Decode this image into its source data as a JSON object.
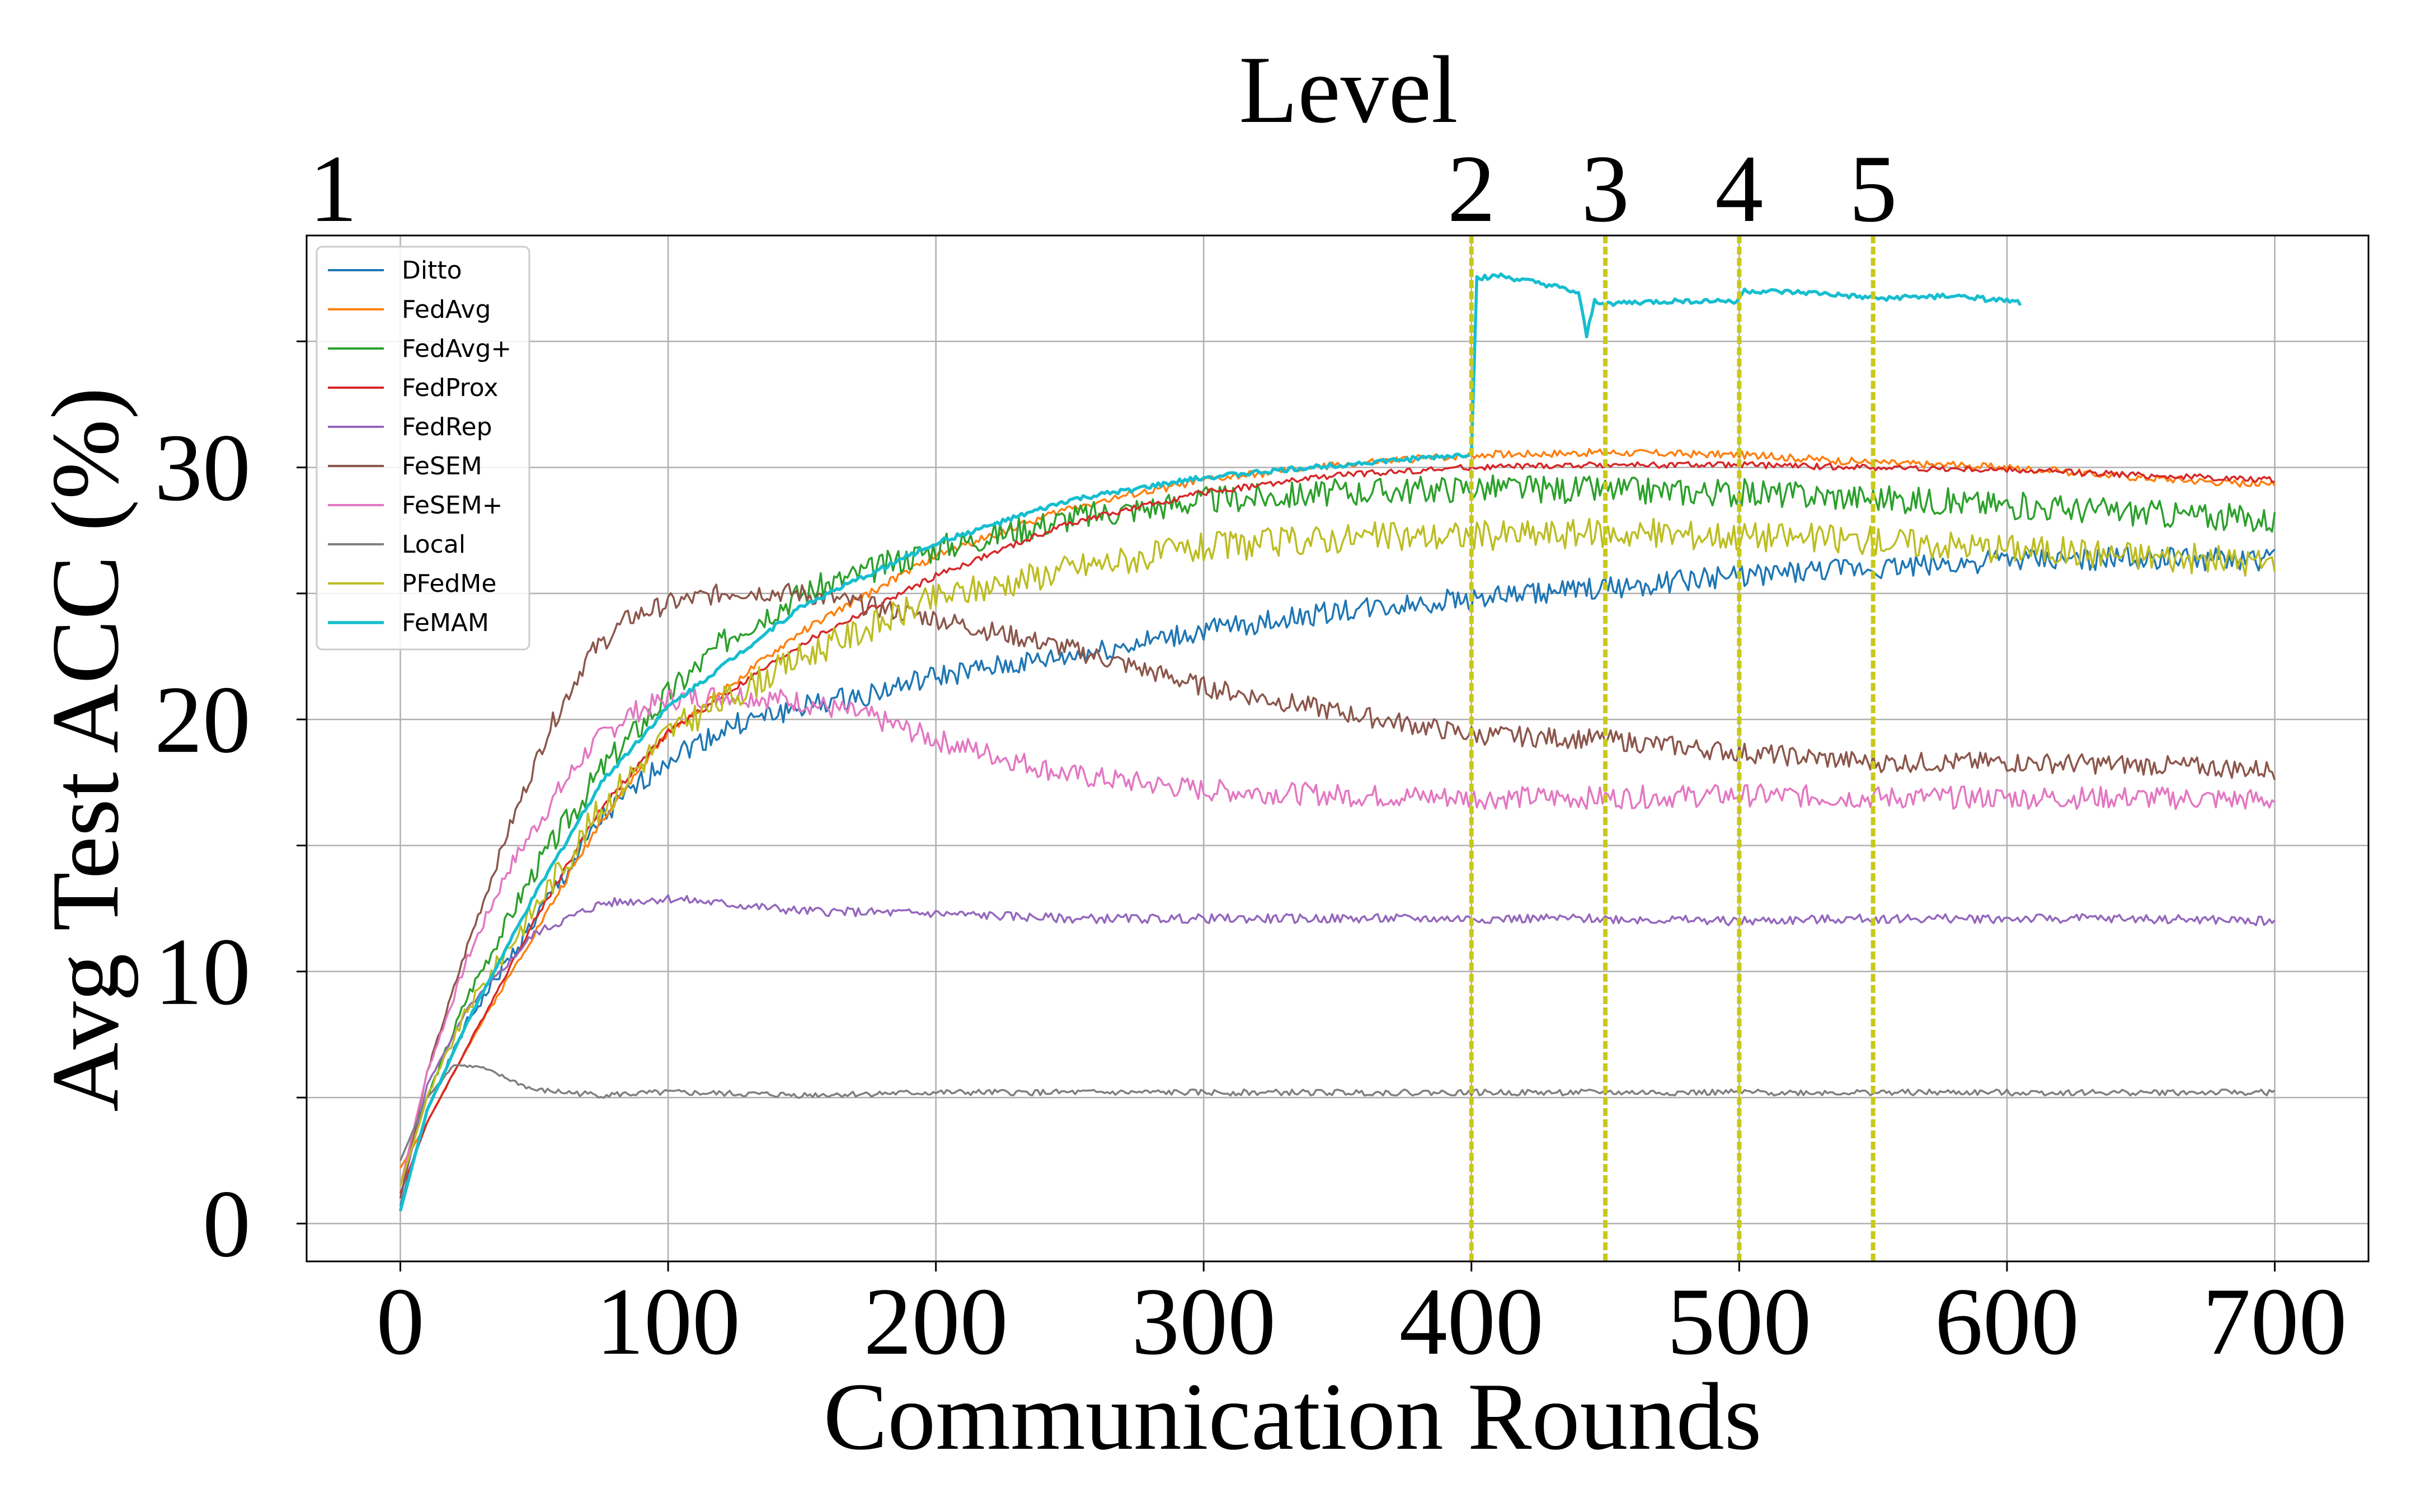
{
  "chart_data": {
    "type": "line",
    "xlabel": "Communication Rounds",
    "ylabel": "Avg Test ACC (%)",
    "top_axis_label": "Level",
    "xlim": [
      -35,
      735
    ],
    "ylim": [
      -1.5,
      39.2
    ],
    "xticks": [
      0,
      100,
      200,
      300,
      400,
      500,
      600,
      700
    ],
    "yticks": [
      0,
      10,
      20,
      30
    ],
    "ygrid": [
      0,
      5,
      10,
      15,
      20,
      25,
      30,
      35
    ],
    "grid": true,
    "legend_position": "upper-left",
    "levels": [
      {
        "label": "1",
        "x": 0
      },
      {
        "label": "2",
        "x": 400
      },
      {
        "label": "3",
        "x": 450
      },
      {
        "label": "4",
        "x": 500
      },
      {
        "label": "5",
        "x": 550
      }
    ],
    "level_lines": [
      400,
      450,
      500,
      550
    ],
    "series": [
      {
        "name": "Ditto",
        "color": "#1f77b4",
        "noise": 0.45,
        "seed": 1,
        "points": [
          [
            0,
            0.7
          ],
          [
            10,
            4.5
          ],
          [
            25,
            8
          ],
          [
            50,
            12
          ],
          [
            75,
            16
          ],
          [
            100,
            18.5
          ],
          [
            125,
            19.8
          ],
          [
            150,
            20.5
          ],
          [
            175,
            21
          ],
          [
            200,
            21.7
          ],
          [
            250,
            22.5
          ],
          [
            300,
            23.5
          ],
          [
            350,
            24.3
          ],
          [
            400,
            24.8
          ],
          [
            450,
            25.2
          ],
          [
            500,
            25.7
          ],
          [
            550,
            26
          ],
          [
            600,
            26.3
          ],
          [
            650,
            26.4
          ],
          [
            700,
            26.3
          ]
        ]
      },
      {
        "name": "FedAvg",
        "color": "#ff7f0e",
        "noise": 0.15,
        "seed": 2,
        "points": [
          [
            0,
            2.2
          ],
          [
            10,
            4
          ],
          [
            25,
            7
          ],
          [
            50,
            11.5
          ],
          [
            75,
            16
          ],
          [
            100,
            19.5
          ],
          [
            150,
            23.5
          ],
          [
            200,
            26.5
          ],
          [
            250,
            28.4
          ],
          [
            300,
            29.5
          ],
          [
            350,
            30.1
          ],
          [
            400,
            30.5
          ],
          [
            450,
            30.6
          ],
          [
            500,
            30.5
          ],
          [
            550,
            30.2
          ],
          [
            600,
            30
          ],
          [
            650,
            29.6
          ],
          [
            700,
            29.3
          ]
        ]
      },
      {
        "name": "FedAvg+",
        "color": "#2ca02c",
        "noise": 0.55,
        "seed": 3,
        "points": [
          [
            0,
            1.5
          ],
          [
            10,
            5
          ],
          [
            25,
            9
          ],
          [
            50,
            14
          ],
          [
            75,
            18
          ],
          [
            100,
            21
          ],
          [
            125,
            23.5
          ],
          [
            150,
            25
          ],
          [
            200,
            26.8
          ],
          [
            250,
            28
          ],
          [
            300,
            28.7
          ],
          [
            350,
            29
          ],
          [
            400,
            29.2
          ],
          [
            450,
            29.1
          ],
          [
            500,
            29
          ],
          [
            550,
            28.8
          ],
          [
            600,
            28.5
          ],
          [
            650,
            28.2
          ],
          [
            700,
            27.9
          ]
        ]
      },
      {
        "name": "FedProx",
        "color": "#d62728",
        "noise": 0.12,
        "seed": 4,
        "points": [
          [
            0,
            1.2
          ],
          [
            10,
            4
          ],
          [
            25,
            7
          ],
          [
            50,
            12
          ],
          [
            75,
            16.5
          ],
          [
            100,
            19.5
          ],
          [
            150,
            23
          ],
          [
            200,
            25.7
          ],
          [
            250,
            27.8
          ],
          [
            300,
            29
          ],
          [
            350,
            29.7
          ],
          [
            400,
            30
          ],
          [
            450,
            30.1
          ],
          [
            500,
            30.1
          ],
          [
            550,
            30
          ],
          [
            600,
            29.9
          ],
          [
            650,
            29.7
          ],
          [
            700,
            29.5
          ]
        ]
      },
      {
        "name": "FedRep",
        "color": "#9467bd",
        "noise": 0.18,
        "seed": 5,
        "points": [
          [
            0,
            1
          ],
          [
            10,
            5.5
          ],
          [
            25,
            8.5
          ],
          [
            50,
            11.5
          ],
          [
            75,
            12.7
          ],
          [
            100,
            12.9
          ],
          [
            150,
            12.4
          ],
          [
            200,
            12.3
          ],
          [
            250,
            12.1
          ],
          [
            300,
            12.1
          ],
          [
            350,
            12.1
          ],
          [
            400,
            12.1
          ],
          [
            450,
            12.1
          ],
          [
            500,
            12
          ],
          [
            550,
            12.1
          ],
          [
            600,
            12.1
          ],
          [
            650,
            12.1
          ],
          [
            700,
            12
          ]
        ]
      },
      {
        "name": "FeSEM",
        "color": "#8c564b",
        "noise": 0.4,
        "seed": 6,
        "points": [
          [
            0,
            1
          ],
          [
            10,
            6
          ],
          [
            25,
            11
          ],
          [
            40,
            15.5
          ],
          [
            55,
            19.5
          ],
          [
            70,
            22.5
          ],
          [
            85,
            24
          ],
          [
            100,
            24.6
          ],
          [
            125,
            25.1
          ],
          [
            150,
            25
          ],
          [
            175,
            24.5
          ],
          [
            200,
            24
          ],
          [
            250,
            22.8
          ],
          [
            300,
            21.3
          ],
          [
            350,
            20.3
          ],
          [
            400,
            19.4
          ],
          [
            450,
            19.2
          ],
          [
            500,
            18.7
          ],
          [
            550,
            18.3
          ],
          [
            600,
            18.3
          ],
          [
            650,
            18.2
          ],
          [
            700,
            18
          ]
        ]
      },
      {
        "name": "FeSEM+",
        "color": "#e377c2",
        "noise": 0.45,
        "seed": 7,
        "points": [
          [
            0,
            1.5
          ],
          [
            10,
            6
          ],
          [
            25,
            10.5
          ],
          [
            40,
            14
          ],
          [
            55,
            16.5
          ],
          [
            70,
            18.8
          ],
          [
            85,
            20.2
          ],
          [
            100,
            20.8
          ],
          [
            125,
            21
          ],
          [
            150,
            20.7
          ],
          [
            175,
            20.1
          ],
          [
            200,
            19.2
          ],
          [
            250,
            17.8
          ],
          [
            300,
            17.2
          ],
          [
            350,
            17
          ],
          [
            400,
            16.9
          ],
          [
            450,
            16.9
          ],
          [
            500,
            17
          ],
          [
            550,
            16.9
          ],
          [
            600,
            16.9
          ],
          [
            650,
            16.9
          ],
          [
            700,
            16.8
          ]
        ]
      },
      {
        "name": "Local",
        "color": "#7f7f7f",
        "noise": 0.12,
        "seed": 8,
        "points": [
          [
            0,
            2.5
          ],
          [
            10,
            5
          ],
          [
            20,
            6.3
          ],
          [
            30,
            6.2
          ],
          [
            50,
            5.3
          ],
          [
            75,
            5.1
          ],
          [
            100,
            5.2
          ],
          [
            150,
            5.1
          ],
          [
            200,
            5.2
          ],
          [
            300,
            5.2
          ],
          [
            400,
            5.2
          ],
          [
            500,
            5.2
          ],
          [
            600,
            5.2
          ],
          [
            700,
            5.2
          ]
        ]
      },
      {
        "name": "PFedMe",
        "color": "#bcbd22",
        "noise": 0.6,
        "seed": 9,
        "points": [
          [
            0,
            1.5
          ],
          [
            10,
            5
          ],
          [
            25,
            8.5
          ],
          [
            50,
            12.5
          ],
          [
            75,
            16.5
          ],
          [
            100,
            19.5
          ],
          [
            150,
            22.5
          ],
          [
            200,
            24.8
          ],
          [
            250,
            26
          ],
          [
            300,
            26.8
          ],
          [
            350,
            27.2
          ],
          [
            400,
            27.3
          ],
          [
            450,
            27.4
          ],
          [
            500,
            27.3
          ],
          [
            550,
            27.1
          ],
          [
            600,
            26.8
          ],
          [
            650,
            26.5
          ],
          [
            700,
            26.2
          ]
        ]
      },
      {
        "name": "FeMAM",
        "color": "#17becf",
        "noise": 0.1,
        "seed": 10,
        "width": 5.5,
        "points": [
          [
            0,
            0.5
          ],
          [
            10,
            4.5
          ],
          [
            25,
            8
          ],
          [
            50,
            13
          ],
          [
            75,
            17.5
          ],
          [
            100,
            20.5
          ],
          [
            150,
            24.5
          ],
          [
            200,
            27
          ],
          [
            250,
            28.7
          ],
          [
            300,
            29.6
          ],
          [
            350,
            30.1
          ],
          [
            398,
            30.5
          ],
          [
            400,
            30.6
          ],
          [
            402,
            37.5
          ],
          [
            410,
            37.6
          ],
          [
            420,
            37.4
          ],
          [
            430,
            37.2
          ],
          [
            440,
            36.9
          ],
          [
            443,
            35.2
          ],
          [
            446,
            36.6
          ],
          [
            450,
            36.5
          ],
          [
            480,
            36.6
          ],
          [
            499,
            36.6
          ],
          [
            502,
            37
          ],
          [
            530,
            36.9
          ],
          [
            550,
            36.7
          ],
          [
            580,
            36.8
          ],
          [
            600,
            36.6
          ],
          [
            605,
            36.5
          ]
        ]
      }
    ]
  }
}
